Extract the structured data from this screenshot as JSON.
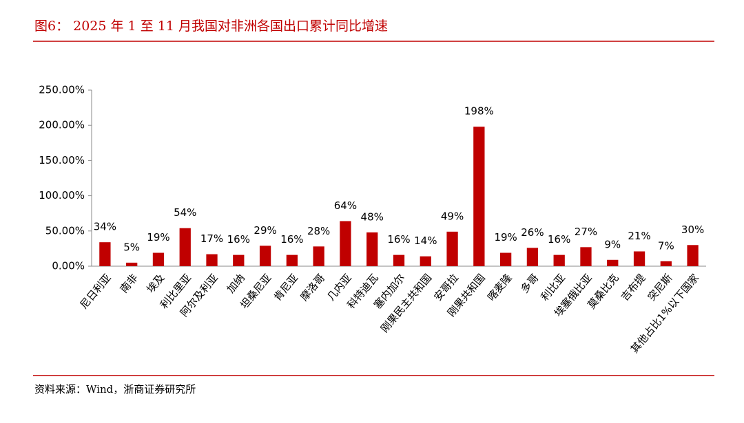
{
  "chart_data": {
    "type": "bar",
    "title": "图6：  2025 年 1 至 11 月我国对非洲各国出口累计同比增速",
    "source": "资料来源：Wind，浙商证券研究所",
    "categories": [
      "尼日利亚",
      "南非",
      "埃及",
      "利比里亚",
      "阿尔及利亚",
      "加纳",
      "坦桑尼亚",
      "肯尼亚",
      "摩洛哥",
      "几内亚",
      "科特迪瓦",
      "塞内加尔",
      "刚果民主共和国",
      "安哥拉",
      "刚果共和国",
      "喀麦隆",
      "多哥",
      "利比亚",
      "埃塞俄比亚",
      "莫桑比克",
      "吉布提",
      "突尼斯",
      "其他占比1%以下国家"
    ],
    "values": [
      34,
      5,
      19,
      54,
      17,
      16,
      29,
      16,
      28,
      64,
      48,
      16,
      14,
      49,
      198,
      19,
      26,
      16,
      27,
      9,
      21,
      7,
      30
    ],
    "value_labels": [
      "34%",
      "5%",
      "19%",
      "54%",
      "17%",
      "16%",
      "29%",
      "16%",
      "28%",
      "64%",
      "48%",
      "16%",
      "14%",
      "49%",
      "198%",
      "19%",
      "26%",
      "16%",
      "27%",
      "9%",
      "21%",
      "7%",
      "30%"
    ],
    "color": "#c00000",
    "ylim": [
      0,
      250
    ],
    "yticks": [
      {
        "value": 0,
        "label": "0.00%"
      },
      {
        "value": 50,
        "label": "50.00%"
      },
      {
        "value": 100,
        "label": "100.00%"
      },
      {
        "value": 150,
        "label": "150.00%"
      },
      {
        "value": 200,
        "label": "200.00%"
      },
      {
        "value": 250,
        "label": "250.00%"
      }
    ],
    "grid": false
  }
}
